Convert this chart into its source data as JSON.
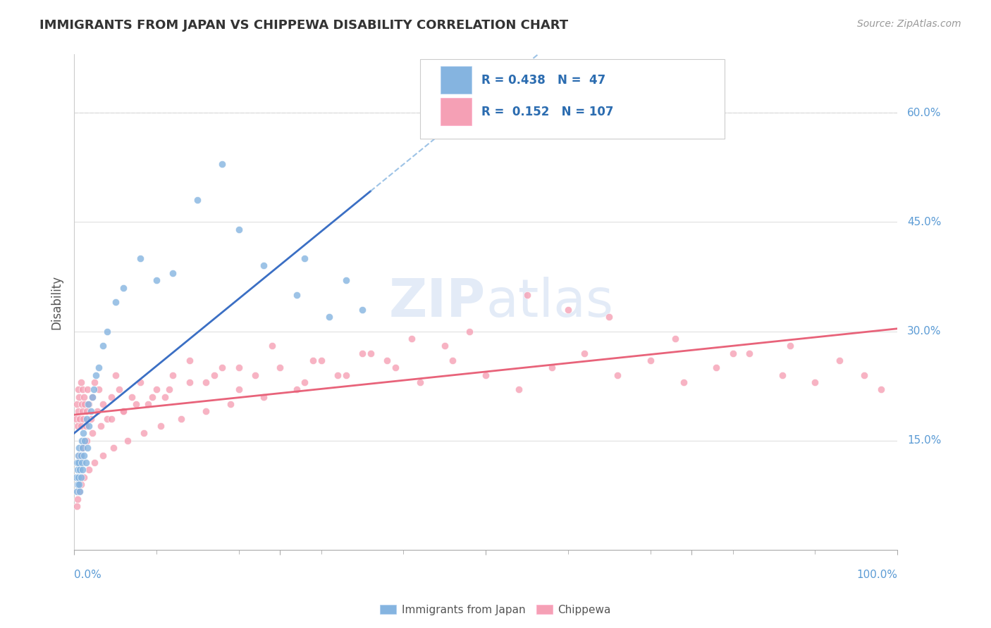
{
  "title": "IMMIGRANTS FROM JAPAN VS CHIPPEWA DISABILITY CORRELATION CHART",
  "source": "Source: ZipAtlas.com",
  "ylabel": "Disability",
  "watermark": "ZIPatlas",
  "legend1_R": "0.438",
  "legend1_N": "47",
  "legend2_R": "0.152",
  "legend2_N": "107",
  "legend1_label": "Immigrants from Japan",
  "legend2_label": "Chippewa",
  "blue_color": "#85B4E0",
  "pink_color": "#F5A0B5",
  "blue_line_color": "#3B6FC4",
  "pink_line_color": "#E8637A",
  "dashed_line_color": "#85B4E0",
  "ytick_values": [
    0.15,
    0.3,
    0.45,
    0.6
  ],
  "ytick_labels": [
    "15.0%",
    "30.0%",
    "45.0%",
    "60.0%"
  ],
  "background_color": "#FFFFFF",
  "grid_color": "#E0E0E0",
  "blue_x": [
    0.002,
    0.003,
    0.003,
    0.004,
    0.004,
    0.005,
    0.005,
    0.005,
    0.006,
    0.006,
    0.007,
    0.007,
    0.008,
    0.008,
    0.009,
    0.009,
    0.01,
    0.01,
    0.011,
    0.012,
    0.013,
    0.014,
    0.015,
    0.016,
    0.017,
    0.018,
    0.02,
    0.022,
    0.024,
    0.026,
    0.03,
    0.035,
    0.04,
    0.05,
    0.06,
    0.08,
    0.1,
    0.12,
    0.15,
    0.18,
    0.2,
    0.23,
    0.27,
    0.31,
    0.33,
    0.28,
    0.35
  ],
  "blue_y": [
    0.1,
    0.12,
    0.08,
    0.11,
    0.09,
    0.13,
    0.1,
    0.12,
    0.09,
    0.14,
    0.11,
    0.08,
    0.13,
    0.1,
    0.15,
    0.12,
    0.14,
    0.11,
    0.16,
    0.13,
    0.15,
    0.12,
    0.18,
    0.14,
    0.2,
    0.17,
    0.19,
    0.21,
    0.22,
    0.24,
    0.25,
    0.28,
    0.3,
    0.34,
    0.36,
    0.4,
    0.37,
    0.38,
    0.48,
    0.53,
    0.44,
    0.39,
    0.35,
    0.32,
    0.37,
    0.4,
    0.33
  ],
  "pink_x": [
    0.002,
    0.003,
    0.004,
    0.005,
    0.005,
    0.006,
    0.007,
    0.008,
    0.008,
    0.009,
    0.01,
    0.01,
    0.011,
    0.012,
    0.013,
    0.014,
    0.015,
    0.016,
    0.018,
    0.02,
    0.022,
    0.025,
    0.028,
    0.03,
    0.035,
    0.04,
    0.045,
    0.05,
    0.055,
    0.06,
    0.07,
    0.08,
    0.09,
    0.1,
    0.11,
    0.12,
    0.14,
    0.16,
    0.18,
    0.2,
    0.22,
    0.25,
    0.28,
    0.3,
    0.33,
    0.36,
    0.39,
    0.42,
    0.46,
    0.5,
    0.54,
    0.58,
    0.62,
    0.66,
    0.7,
    0.74,
    0.78,
    0.82,
    0.86,
    0.9,
    0.93,
    0.96,
    0.98,
    0.65,
    0.45,
    0.38,
    0.32,
    0.27,
    0.23,
    0.19,
    0.16,
    0.13,
    0.105,
    0.085,
    0.065,
    0.048,
    0.035,
    0.025,
    0.018,
    0.012,
    0.008,
    0.006,
    0.004,
    0.003,
    0.55,
    0.6,
    0.48,
    0.41,
    0.35,
    0.29,
    0.24,
    0.2,
    0.17,
    0.14,
    0.115,
    0.095,
    0.075,
    0.06,
    0.045,
    0.032,
    0.022,
    0.015,
    0.01,
    0.007,
    0.73,
    0.8,
    0.87
  ],
  "pink_y": [
    0.18,
    0.2,
    0.17,
    0.22,
    0.19,
    0.21,
    0.18,
    0.23,
    0.17,
    0.2,
    0.22,
    0.19,
    0.18,
    0.21,
    0.2,
    0.17,
    0.19,
    0.22,
    0.2,
    0.18,
    0.21,
    0.23,
    0.19,
    0.22,
    0.2,
    0.18,
    0.21,
    0.24,
    0.22,
    0.19,
    0.21,
    0.23,
    0.2,
    0.22,
    0.21,
    0.24,
    0.26,
    0.23,
    0.25,
    0.22,
    0.24,
    0.25,
    0.23,
    0.26,
    0.24,
    0.27,
    0.25,
    0.23,
    0.26,
    0.24,
    0.22,
    0.25,
    0.27,
    0.24,
    0.26,
    0.23,
    0.25,
    0.27,
    0.24,
    0.23,
    0.26,
    0.24,
    0.22,
    0.32,
    0.28,
    0.26,
    0.24,
    0.22,
    0.21,
    0.2,
    0.19,
    0.18,
    0.17,
    0.16,
    0.15,
    0.14,
    0.13,
    0.12,
    0.11,
    0.1,
    0.09,
    0.08,
    0.07,
    0.06,
    0.35,
    0.33,
    0.3,
    0.29,
    0.27,
    0.26,
    0.28,
    0.25,
    0.24,
    0.23,
    0.22,
    0.21,
    0.2,
    0.19,
    0.18,
    0.17,
    0.16,
    0.15,
    0.14,
    0.13,
    0.29,
    0.27,
    0.28
  ]
}
